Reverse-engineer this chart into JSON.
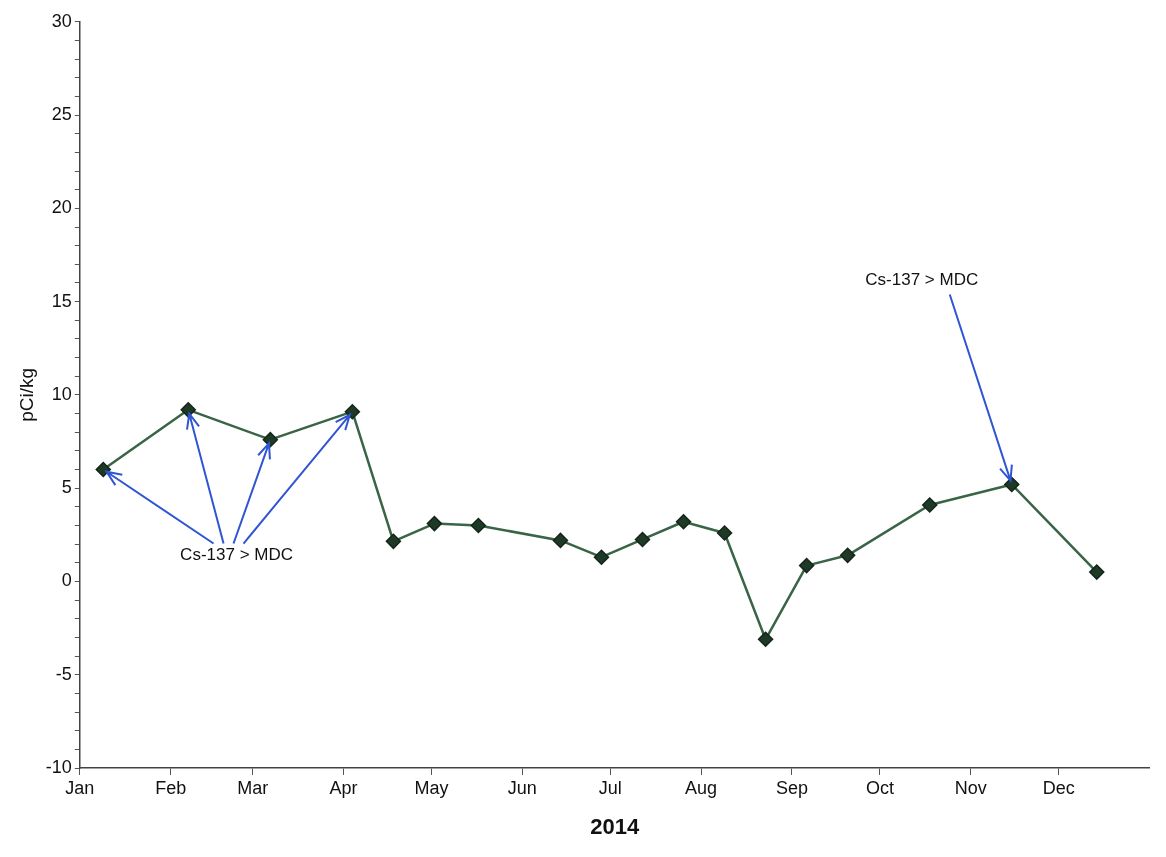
{
  "chart_data": {
    "type": "line",
    "xlabel": "2014",
    "ylabel": "pCi/kg",
    "x": [
      "2014-01-09",
      "2014-02-07",
      "2014-03-07",
      "2014-04-04",
      "2014-04-18",
      "2014-05-02",
      "2014-05-17",
      "2014-06-14",
      "2014-06-28",
      "2014-07-12",
      "2014-07-26",
      "2014-08-09",
      "2014-08-23",
      "2014-09-06",
      "2014-09-20",
      "2014-10-18",
      "2014-11-15",
      "2014-12-14"
    ],
    "series": [
      {
        "color": "#3a6446",
        "values": [
          6.0,
          9.2,
          7.6,
          9.1,
          2.15,
          3.1,
          3.0,
          2.2,
          1.3,
          2.25,
          3.2,
          2.6,
          -3.1,
          0.85,
          1.4,
          4.1,
          5.2,
          0.5
        ]
      }
    ],
    "marker": "diamond",
    "line_style": "solid",
    "grid": false,
    "legend": false,
    "xlim": [
      "2014-01-01",
      "2015-01-01"
    ],
    "xticks": [
      {
        "value": "2014-01-01",
        "label": "Jan"
      },
      {
        "value": "2014-02-01",
        "label": "Feb"
      },
      {
        "value": "2014-03-01",
        "label": "Mar"
      },
      {
        "value": "2014-04-01",
        "label": "Apr"
      },
      {
        "value": "2014-05-01",
        "label": "May"
      },
      {
        "value": "2014-06-01",
        "label": "Jun"
      },
      {
        "value": "2014-07-01",
        "label": "Jul"
      },
      {
        "value": "2014-08-01",
        "label": "Aug"
      },
      {
        "value": "2014-09-01",
        "label": "Sep"
      },
      {
        "value": "2014-10-01",
        "label": "Oct"
      },
      {
        "value": "2014-11-01",
        "label": "Nov"
      },
      {
        "value": "2014-12-01",
        "label": "Dec"
      }
    ],
    "ylim": [
      -10,
      30
    ],
    "yticks": [
      -10,
      {
        "value": -9,
        "label": null
      },
      {
        "value": -8,
        "label": null
      },
      {
        "value": -7,
        "label": null
      },
      {
        "value": -6,
        "label": null
      },
      -5,
      {
        "value": -4,
        "label": null
      },
      {
        "value": -3,
        "label": null
      },
      {
        "value": -2,
        "label": null
      },
      {
        "value": -1,
        "label": null
      },
      0,
      {
        "value": 1,
        "label": null
      },
      {
        "value": 2,
        "label": null
      },
      {
        "value": 3,
        "label": null
      },
      {
        "value": 4,
        "label": null
      },
      5,
      {
        "value": 6,
        "label": null
      },
      {
        "value": 7,
        "label": null
      },
      {
        "value": 8,
        "label": null
      },
      {
        "value": 9,
        "label": null
      },
      10,
      {
        "value": 11,
        "label": null
      },
      {
        "value": 12,
        "label": null
      },
      {
        "value": 13,
        "label": null
      },
      {
        "value": 14,
        "label": null
      },
      15,
      {
        "value": 16,
        "label": null
      },
      {
        "value": 17,
        "label": null
      },
      {
        "value": 18,
        "label": null
      },
      {
        "value": 19,
        "label": null
      },
      20,
      {
        "value": 21,
        "label": null
      },
      {
        "value": 22,
        "label": null
      },
      {
        "value": 23,
        "label": null
      },
      {
        "value": 24,
        "label": null
      },
      25,
      {
        "value": 26,
        "label": null
      },
      {
        "value": 27,
        "label": null
      },
      {
        "value": 28,
        "label": null
      },
      {
        "value": 29,
        "label": null
      },
      30
    ],
    "annotations": [
      {
        "text": "Cs-137 > MDC",
        "x": "2014-01-09",
        "y": 6.0
      },
      {
        "text": "Cs-137 > MDC",
        "x": "2014-11-15",
        "y": 5.2
      }
    ]
  }
}
